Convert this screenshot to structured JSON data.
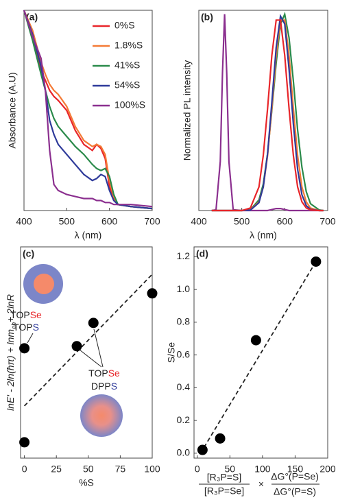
{
  "chart_data": [
    {
      "type": "line",
      "panel_label": "(a)",
      "xlabel": "λ (nm)",
      "ylabel": "Absorbance (A.U)",
      "xlim": [
        400,
        700
      ],
      "ylim": [
        0,
        1
      ],
      "xticks": [
        400,
        500,
        600,
        700
      ],
      "legend": "upper right",
      "x": [
        400,
        420,
        440,
        450,
        460,
        470,
        480,
        500,
        520,
        540,
        560,
        570,
        580,
        590,
        600,
        610,
        620,
        650,
        700
      ],
      "series": [
        {
          "name": "0%S",
          "color": "#e8262a",
          "values": [
            1.0,
            0.88,
            0.7,
            0.65,
            0.6,
            0.57,
            0.55,
            0.5,
            0.4,
            0.33,
            0.3,
            0.33,
            0.31,
            0.26,
            0.12,
            0.06,
            0.03,
            0.02,
            0.01
          ]
        },
        {
          "name": "1.8%S",
          "color": "#f47a36",
          "values": [
            1.0,
            0.9,
            0.74,
            0.68,
            0.63,
            0.6,
            0.58,
            0.52,
            0.42,
            0.35,
            0.32,
            0.33,
            0.32,
            0.28,
            0.15,
            0.07,
            0.03,
            0.02,
            0.01
          ]
        },
        {
          "name": "41%S",
          "color": "#2a8a4a",
          "values": [
            1.0,
            0.85,
            0.68,
            0.6,
            0.52,
            0.46,
            0.42,
            0.37,
            0.32,
            0.28,
            0.23,
            0.21,
            0.2,
            0.21,
            0.17,
            0.08,
            0.03,
            0.02,
            0.01
          ]
        },
        {
          "name": "54%S",
          "color": "#2e3a9a",
          "values": [
            1.0,
            0.88,
            0.72,
            0.6,
            0.45,
            0.38,
            0.33,
            0.28,
            0.23,
            0.18,
            0.15,
            0.16,
            0.18,
            0.17,
            0.1,
            0.05,
            0.03,
            0.02,
            0.01
          ]
        },
        {
          "name": "100%S",
          "color": "#8b2f8f",
          "values": [
            1.0,
            0.87,
            0.76,
            0.6,
            0.3,
            0.13,
            0.1,
            0.08,
            0.07,
            0.06,
            0.06,
            0.05,
            0.05,
            0.04,
            0.04,
            0.03,
            0.03,
            0.03,
            0.02
          ]
        }
      ]
    },
    {
      "type": "line",
      "panel_label": "(b)",
      "xlabel": "λ (nm)",
      "ylabel": "Normalized PL intensity",
      "xlim": [
        400,
        700
      ],
      "ylim": [
        0,
        1.02
      ],
      "xticks": [
        400,
        500,
        600,
        700
      ],
      "x": [
        430,
        440,
        450,
        455,
        460,
        465,
        470,
        480,
        500,
        520,
        540,
        550,
        560,
        570,
        580,
        590,
        600,
        610,
        620,
        630,
        640,
        650,
        660,
        680,
        690
      ],
      "series": [
        {
          "color": "#8b2f8f",
          "values": [
            0,
            0.004,
            0.25,
            0.7,
            1.0,
            0.7,
            0.25,
            0.004,
            0,
            0,
            0,
            0,
            0,
            0.005,
            0.01,
            0.01,
            0.005,
            0,
            0,
            0,
            0,
            0,
            0,
            0,
            0
          ]
        },
        {
          "color": "#2a8a4a",
          "values": [
            0,
            0,
            0,
            0,
            0,
            0,
            0,
            0,
            0,
            0.005,
            0.054,
            0.135,
            0.29,
            0.51,
            0.75,
            0.95,
            1.0,
            0.88,
            0.66,
            0.41,
            0.22,
            0.096,
            0.035,
            0.003,
            0
          ]
        },
        {
          "color": "#f47a36",
          "values": [
            0,
            0,
            0,
            0,
            0,
            0,
            0,
            0,
            0,
            0.003,
            0.044,
            0.12,
            0.28,
            0.52,
            0.79,
            0.97,
            0.97,
            0.79,
            0.52,
            0.28,
            0.12,
            0.044,
            0.013,
            0,
            0
          ]
        },
        {
          "color": "#2e3a9a",
          "values": [
            0,
            0,
            0,
            0,
            0,
            0,
            0,
            0,
            0,
            0.002,
            0.04,
            0.12,
            0.29,
            0.55,
            0.83,
            0.99,
            0.95,
            0.72,
            0.44,
            0.21,
            0.08,
            0.025,
            0.006,
            0,
            0
          ]
        },
        {
          "color": "#e8262a",
          "values": [
            0,
            0,
            0,
            0,
            0,
            0,
            0,
            0,
            0,
            0.013,
            0.12,
            0.28,
            0.52,
            0.79,
            0.97,
            0.97,
            0.79,
            0.52,
            0.28,
            0.12,
            0.044,
            0.013,
            0.003,
            0,
            0
          ]
        }
      ]
    },
    {
      "type": "scatter",
      "panel_label": "(c)",
      "xlabel": "%S",
      "ylabel_parts": [
        "lnE' - 2ln(ħπ) + lnm",
        "eh",
        "+ 2lnR"
      ],
      "xlim": [
        -3,
        100
      ],
      "ylim": [
        0,
        1
      ],
      "xticks": [
        0,
        25,
        50,
        75,
        100
      ],
      "color": "#000",
      "x": [
        0,
        0,
        41,
        54,
        100
      ],
      "values": [
        0.075,
        0.52,
        0.53,
        0.64,
        0.78
      ],
      "fit": {
        "x": [
          0,
          100
        ],
        "values": [
          0.247,
          0.87
        ]
      },
      "annotations": [
        {
          "parts": [
            "TOP",
            "Se"
          ],
          "colors": [
            "#222",
            "#e8262a"
          ]
        },
        {
          "parts": [
            "TOP",
            "S"
          ],
          "colors": [
            "#222",
            "#2e3a9a"
          ]
        },
        {
          "parts": [
            "TOP",
            "Se"
          ],
          "colors": [
            "#222",
            "#e8262a"
          ]
        },
        {
          "parts": [
            "DPP",
            "S"
          ],
          "colors": [
            "#222",
            "#2e3a9a"
          ]
        }
      ]
    },
    {
      "type": "scatter",
      "panel_label": "(d)",
      "ylabel": "S/Se",
      "xlabel": {
        "left_numerator": "[R₃P=S]",
        "left_denominator": "[R₃P=Se]",
        "operator": "×",
        "right_numerator": "ΔG°(P=Se)",
        "right_denominator": "ΔG°(P=S)"
      },
      "xlim": [
        -5,
        200
      ],
      "ylim": [
        -0.03,
        1.26
      ],
      "xticks": [
        0,
        50,
        100,
        150,
        200
      ],
      "yticks": [
        {
          "value": 0,
          "label": "0.0"
        },
        0.2,
        0.4,
        0.6,
        0.8,
        {
          "value": 1,
          "label": "1.0"
        },
        1.2
      ],
      "color": "#000",
      "x": [
        8,
        35,
        90,
        182
      ],
      "values": [
        0.02,
        0.09,
        0.69,
        1.17
      ],
      "fit": {
        "x": [
          5,
          182
        ],
        "values": [
          0,
          1.17
        ]
      }
    }
  ]
}
